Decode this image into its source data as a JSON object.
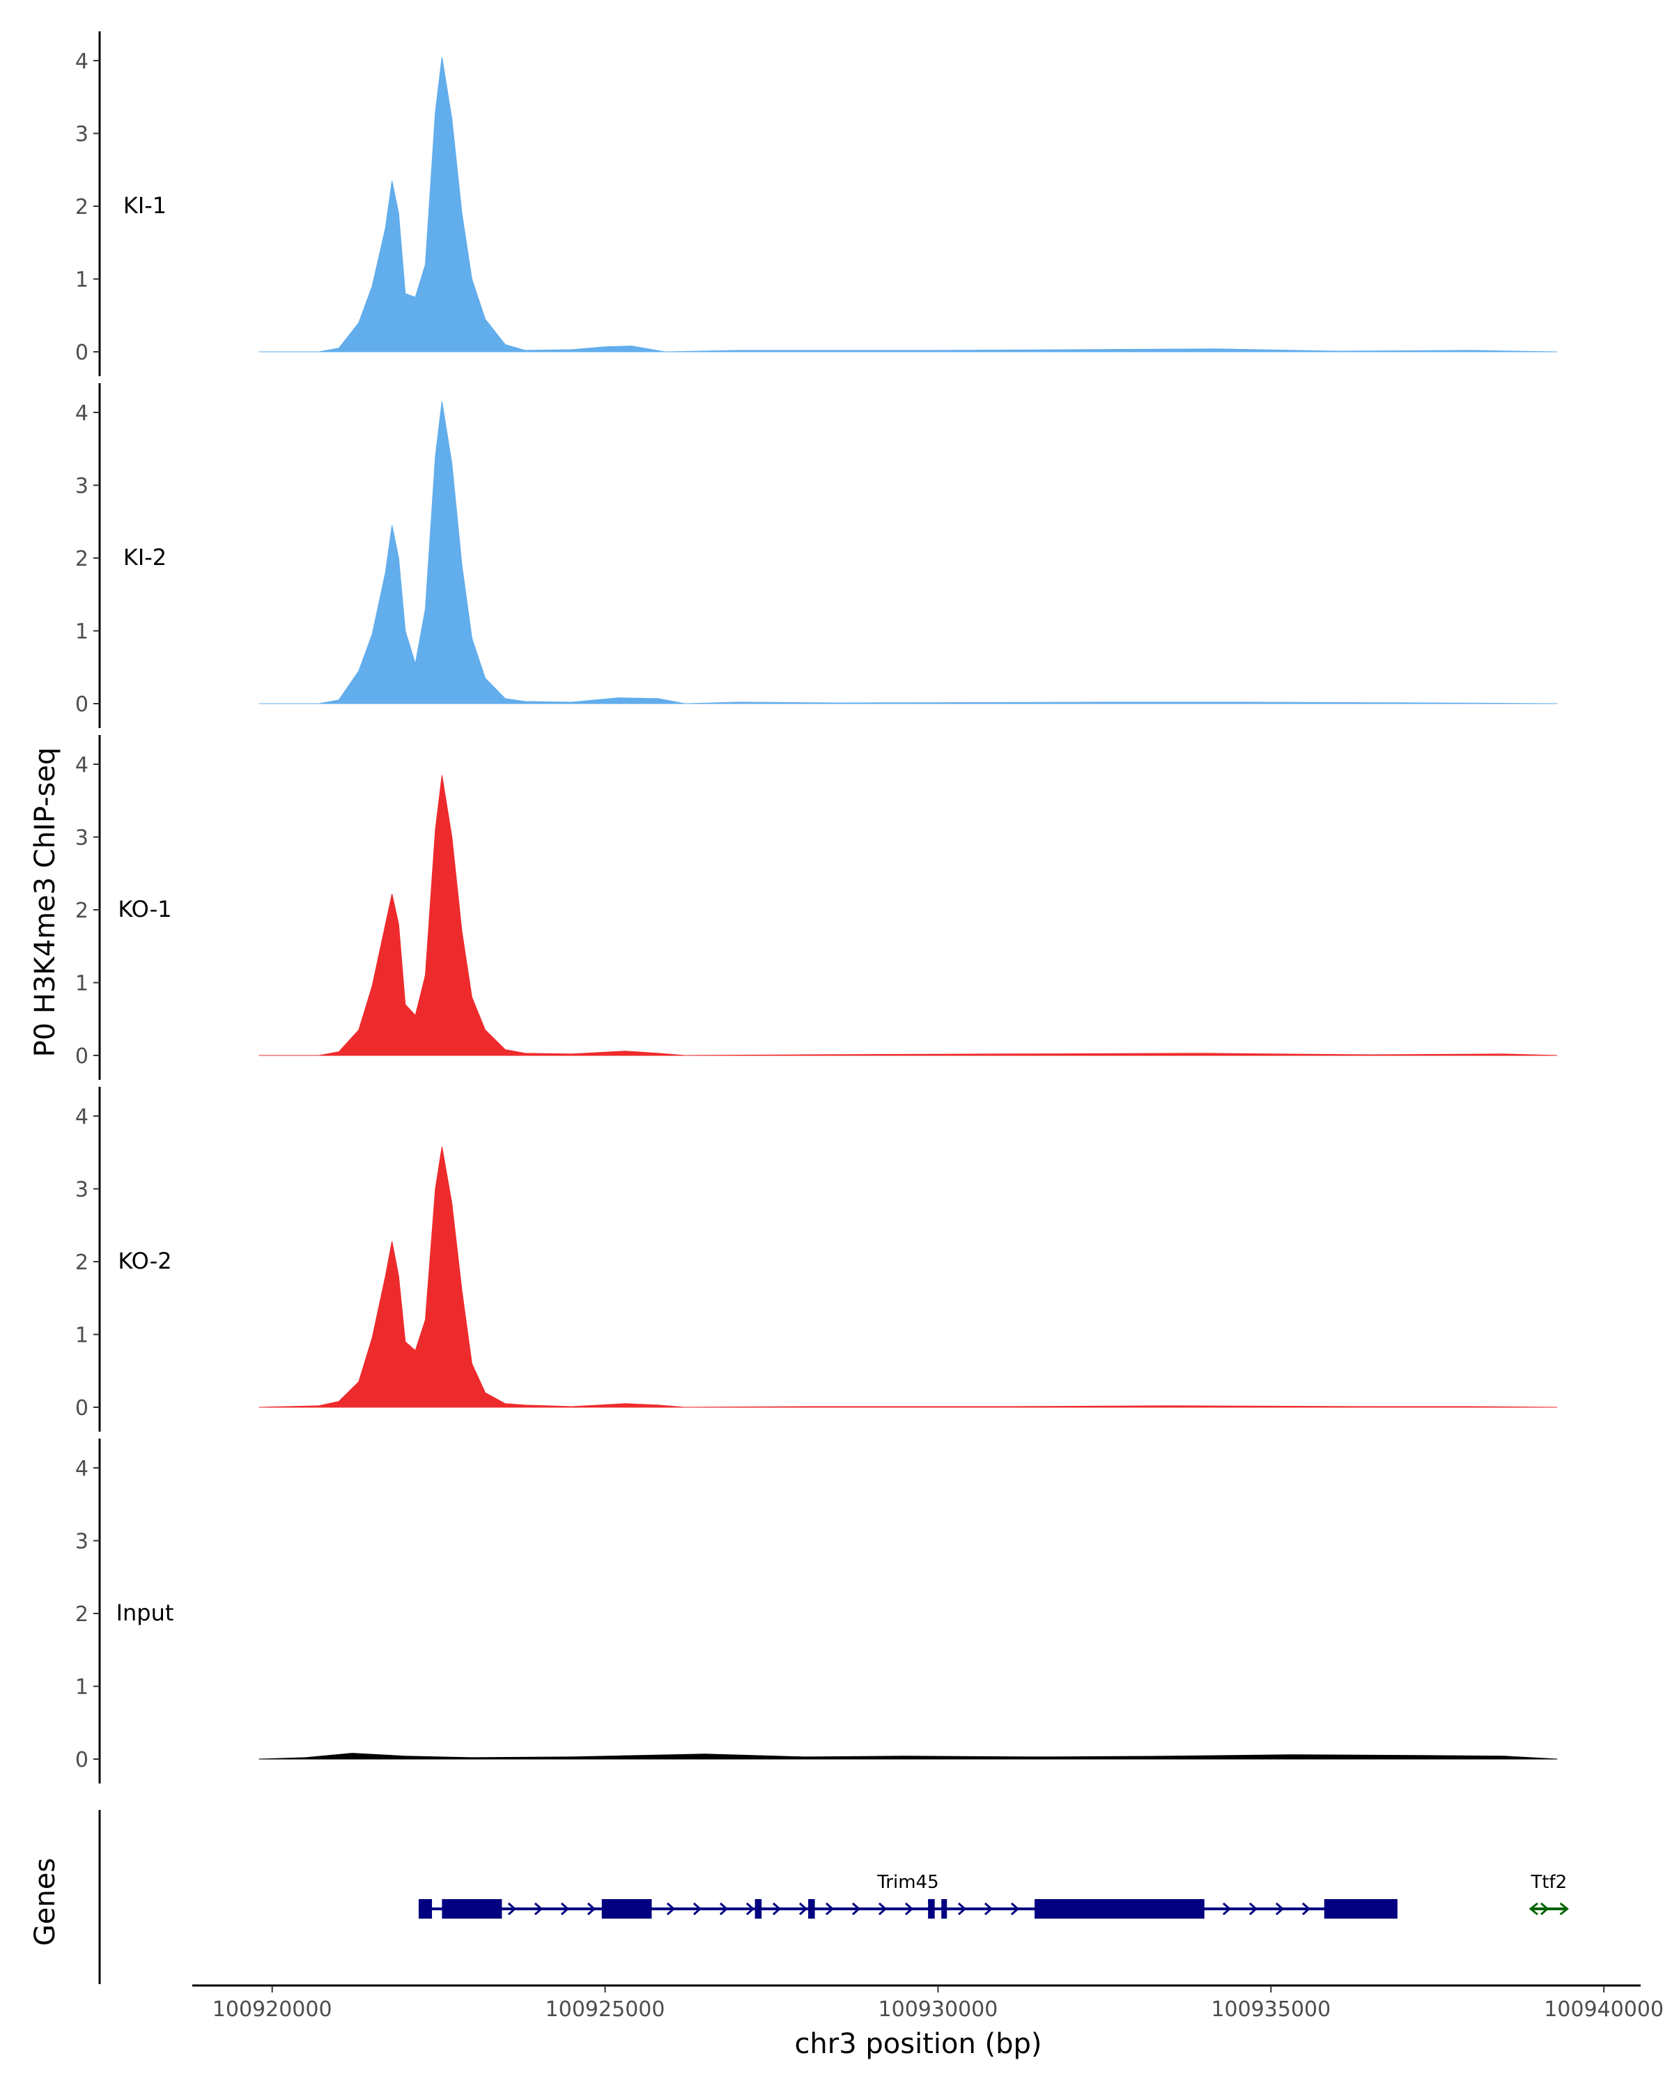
{
  "chart_data": {
    "type": "area",
    "ylabel": "P0 H3K4me3 ChIP-seq",
    "xlabel": "chr3 position (bp)",
    "xlim": [
      100918800,
      100940500
    ],
    "ylim": [
      0,
      4.35
    ],
    "yticks": [
      "0",
      "1",
      "2",
      "3",
      "4"
    ],
    "xticks": [
      {
        "value": 100920000,
        "label": "100920000"
      },
      {
        "value": 100925000,
        "label": "100925000"
      },
      {
        "value": 100930000,
        "label": "100930000"
      },
      {
        "value": 100935000,
        "label": "100935000"
      },
      {
        "value": 100940000,
        "label": "100940000"
      }
    ],
    "series": [
      {
        "name": "KI-1",
        "color": "#62ADEC",
        "points": [
          [
            100919800,
            0
          ],
          [
            100920700,
            0
          ],
          [
            100921000,
            0.05
          ],
          [
            100921300,
            0.4
          ],
          [
            100921500,
            0.9
          ],
          [
            100921700,
            1.7
          ],
          [
            100921800,
            2.35
          ],
          [
            100921900,
            1.9
          ],
          [
            100922000,
            0.8
          ],
          [
            100922150,
            0.75
          ],
          [
            100922300,
            1.2
          ],
          [
            100922450,
            3.3
          ],
          [
            100922550,
            4.05
          ],
          [
            100922700,
            3.2
          ],
          [
            100922850,
            1.9
          ],
          [
            100923000,
            1.0
          ],
          [
            100923200,
            0.45
          ],
          [
            100923500,
            0.1
          ],
          [
            100923800,
            0.02
          ],
          [
            100924500,
            0.03
          ],
          [
            100925000,
            0.07
          ],
          [
            100925400,
            0.08
          ],
          [
            100925900,
            0
          ],
          [
            100927000,
            0.02
          ],
          [
            100928500,
            0.02
          ],
          [
            100930000,
            0.02
          ],
          [
            100934200,
            0.04
          ],
          [
            100936000,
            0.01
          ],
          [
            100938000,
            0.02
          ],
          [
            100939300,
            0
          ]
        ]
      },
      {
        "name": "KI-2",
        "color": "#62ADEC",
        "points": [
          [
            100919800,
            0
          ],
          [
            100920700,
            0
          ],
          [
            100921000,
            0.05
          ],
          [
            100921300,
            0.45
          ],
          [
            100921500,
            0.95
          ],
          [
            100921700,
            1.8
          ],
          [
            100921800,
            2.45
          ],
          [
            100921900,
            2.0
          ],
          [
            100922000,
            1.0
          ],
          [
            100922150,
            0.55
          ],
          [
            100922300,
            1.3
          ],
          [
            100922450,
            3.4
          ],
          [
            100922550,
            4.15
          ],
          [
            100922700,
            3.3
          ],
          [
            100922850,
            1.9
          ],
          [
            100923000,
            0.9
          ],
          [
            100923200,
            0.35
          ],
          [
            100923500,
            0.07
          ],
          [
            100923800,
            0.03
          ],
          [
            100924500,
            0.02
          ],
          [
            100925200,
            0.08
          ],
          [
            100925800,
            0.07
          ],
          [
            100926200,
            0
          ],
          [
            100927000,
            0.02
          ],
          [
            100928500,
            0.01
          ],
          [
            100932500,
            0.02
          ],
          [
            100934500,
            0.02
          ],
          [
            100937500,
            0.01
          ],
          [
            100939300,
            0
          ]
        ]
      },
      {
        "name": "KO-1",
        "color": "#EE2B2C",
        "points": [
          [
            100919800,
            0
          ],
          [
            100920700,
            0
          ],
          [
            100921000,
            0.05
          ],
          [
            100921300,
            0.35
          ],
          [
            100921500,
            0.95
          ],
          [
            100921700,
            1.8
          ],
          [
            100921800,
            2.22
          ],
          [
            100921900,
            1.8
          ],
          [
            100922000,
            0.7
          ],
          [
            100922150,
            0.55
          ],
          [
            100922300,
            1.1
          ],
          [
            100922450,
            3.1
          ],
          [
            100922550,
            3.85
          ],
          [
            100922700,
            3.0
          ],
          [
            100922850,
            1.7
          ],
          [
            100923000,
            0.8
          ],
          [
            100923200,
            0.35
          ],
          [
            100923500,
            0.08
          ],
          [
            100923800,
            0.03
          ],
          [
            100924500,
            0.02
          ],
          [
            100925300,
            0.06
          ],
          [
            100925800,
            0.03
          ],
          [
            100926200,
            0
          ],
          [
            100928000,
            0.01
          ],
          [
            100930800,
            0.02
          ],
          [
            100934000,
            0.03
          ],
          [
            100936500,
            0.01
          ],
          [
            100938500,
            0.02
          ],
          [
            100939300,
            0
          ]
        ]
      },
      {
        "name": "KO-2",
        "color": "#EE2B2C",
        "points": [
          [
            100919800,
            0
          ],
          [
            100920700,
            0.02
          ],
          [
            100921000,
            0.08
          ],
          [
            100921300,
            0.35
          ],
          [
            100921500,
            0.95
          ],
          [
            100921700,
            1.8
          ],
          [
            100921800,
            2.28
          ],
          [
            100921900,
            1.8
          ],
          [
            100922000,
            0.9
          ],
          [
            100922150,
            0.78
          ],
          [
            100922300,
            1.2
          ],
          [
            100922450,
            3.0
          ],
          [
            100922550,
            3.58
          ],
          [
            100922700,
            2.8
          ],
          [
            100922850,
            1.6
          ],
          [
            100923000,
            0.6
          ],
          [
            100923200,
            0.2
          ],
          [
            100923500,
            0.05
          ],
          [
            100923800,
            0.03
          ],
          [
            100924500,
            0.01
          ],
          [
            100925300,
            0.05
          ],
          [
            100925800,
            0.03
          ],
          [
            100926200,
            0
          ],
          [
            100928000,
            0.01
          ],
          [
            100931000,
            0.01
          ],
          [
            100933500,
            0.02
          ],
          [
            100936500,
            0.01
          ],
          [
            100938000,
            0.01
          ],
          [
            100939300,
            0
          ]
        ]
      },
      {
        "name": "Input",
        "color": "#000000",
        "points": [
          [
            100919800,
            0
          ],
          [
            100920500,
            0.02
          ],
          [
            100921200,
            0.08
          ],
          [
            100922000,
            0.04
          ],
          [
            100923000,
            0.02
          ],
          [
            100924500,
            0.03
          ],
          [
            100926500,
            0.07
          ],
          [
            100928000,
            0.03
          ],
          [
            100929500,
            0.04
          ],
          [
            100931500,
            0.03
          ],
          [
            100933500,
            0.04
          ],
          [
            100935300,
            0.06
          ],
          [
            100937200,
            0.05
          ],
          [
            100938500,
            0.04
          ],
          [
            100939300,
            0
          ]
        ]
      }
    ],
    "genes_label": "Genes",
    "genes": [
      {
        "name": "Trim45",
        "color": "#000080",
        "strand": "+",
        "start": 100922200,
        "end": 100936900,
        "exons": [
          [
            100922200,
            100922400
          ],
          [
            100922550,
            100923450
          ],
          [
            100924950,
            100925700
          ],
          [
            100927250,
            100927350
          ],
          [
            100928050,
            100928150
          ],
          [
            100929850,
            100929950
          ],
          [
            100930050,
            100930100
          ],
          [
            100931450,
            100934000
          ],
          [
            100935800,
            100936900
          ]
        ]
      },
      {
        "name": "Ttf2",
        "color": "#006400",
        "strand": "+",
        "start": 100938900,
        "end": 100939450,
        "exons": []
      }
    ]
  }
}
